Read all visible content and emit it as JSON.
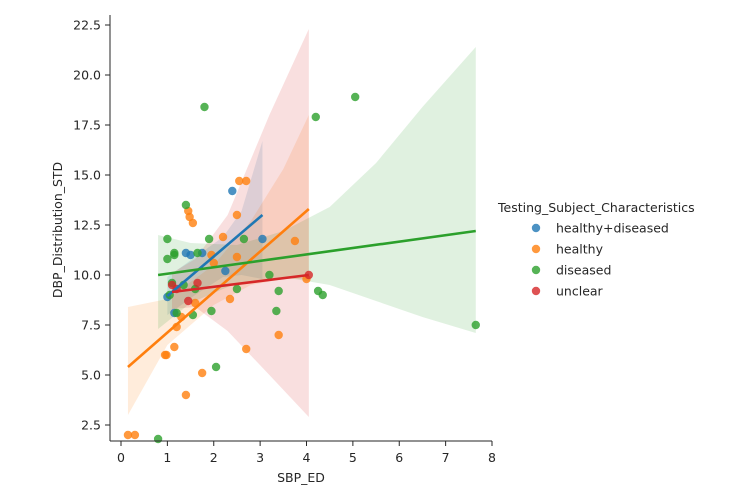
{
  "chart_data": {
    "type": "scatter",
    "xlabel": "SBP_ED",
    "ylabel": "DBP_Distribution_STD",
    "xlim": [
      -0.2,
      8.0
    ],
    "ylim": [
      1.0,
      23.0
    ],
    "xticks": [
      0,
      1,
      2,
      3,
      4,
      5,
      6,
      7,
      8
    ],
    "yticks": [
      2.5,
      5.0,
      7.5,
      10.0,
      12.5,
      15.0,
      17.5,
      20.0,
      22.5
    ],
    "grid": false,
    "legend": {
      "title": "Testing_Subject_Characteristics",
      "placement": "right"
    },
    "series": [
      {
        "name": "healthy+diseased",
        "color": "#1f77b4",
        "points": [
          [
            1.0,
            8.9
          ],
          [
            1.15,
            8.1
          ],
          [
            1.4,
            11.1
          ],
          [
            1.5,
            11.0
          ],
          [
            1.75,
            11.1
          ],
          [
            2.25,
            10.2
          ],
          [
            2.4,
            14.2
          ],
          [
            3.05,
            11.8
          ]
        ],
        "fit": [
          [
            1.0,
            8.95
          ],
          [
            3.05,
            13.0
          ]
        ],
        "band_upper": [
          [
            1.0,
            9.9
          ],
          [
            1.6,
            10.9
          ],
          [
            2.2,
            11.9
          ],
          [
            2.6,
            13.2
          ],
          [
            3.05,
            16.7
          ]
        ],
        "band_lower": [
          [
            1.0,
            8.0
          ],
          [
            1.6,
            9.0
          ],
          [
            2.2,
            9.9
          ],
          [
            2.6,
            10.0
          ],
          [
            3.05,
            9.8
          ]
        ]
      },
      {
        "name": "healthy",
        "color": "#ff7f0e",
        "points": [
          [
            0.15,
            2.0
          ],
          [
            0.3,
            2.0
          ],
          [
            0.95,
            6.0
          ],
          [
            0.98,
            6.0
          ],
          [
            1.15,
            6.4
          ],
          [
            1.2,
            7.4
          ],
          [
            1.3,
            7.9
          ],
          [
            1.4,
            4.0
          ],
          [
            1.45,
            13.2
          ],
          [
            1.48,
            12.9
          ],
          [
            1.55,
            12.6
          ],
          [
            1.6,
            8.6
          ],
          [
            1.75,
            5.1
          ],
          [
            1.95,
            11.0
          ],
          [
            2.0,
            10.6
          ],
          [
            2.2,
            11.9
          ],
          [
            2.35,
            8.8
          ],
          [
            2.5,
            10.9
          ],
          [
            2.5,
            13.0
          ],
          [
            2.55,
            14.7
          ],
          [
            2.7,
            14.7
          ],
          [
            2.7,
            6.3
          ],
          [
            3.4,
            7.0
          ],
          [
            3.75,
            11.7
          ],
          [
            4.0,
            9.8
          ]
        ],
        "fit": [
          [
            0.15,
            5.4
          ],
          [
            4.05,
            13.3
          ]
        ],
        "band_upper": [
          [
            0.15,
            8.4
          ],
          [
            1.0,
            8.8
          ],
          [
            2.0,
            10.5
          ],
          [
            2.8,
            12.7
          ],
          [
            3.5,
            15.3
          ],
          [
            4.05,
            18.0
          ]
        ],
        "band_lower": [
          [
            0.15,
            3.0
          ],
          [
            1.0,
            6.5
          ],
          [
            2.0,
            8.5
          ],
          [
            2.8,
            9.5
          ],
          [
            3.5,
            9.8
          ],
          [
            4.05,
            9.8
          ]
        ]
      },
      {
        "name": "diseased",
        "color": "#2ca02c",
        "points": [
          [
            0.8,
            1.8
          ],
          [
            1.0,
            10.8
          ],
          [
            1.0,
            11.8
          ],
          [
            1.05,
            9.0
          ],
          [
            1.1,
            9.6
          ],
          [
            1.15,
            11.0
          ],
          [
            1.15,
            11.1
          ],
          [
            1.2,
            8.1
          ],
          [
            1.35,
            9.5
          ],
          [
            1.4,
            13.5
          ],
          [
            1.55,
            8.0
          ],
          [
            1.6,
            9.3
          ],
          [
            1.65,
            11.1
          ],
          [
            1.8,
            18.4
          ],
          [
            1.9,
            11.8
          ],
          [
            1.95,
            8.2
          ],
          [
            2.05,
            5.4
          ],
          [
            2.5,
            9.3
          ],
          [
            2.65,
            11.8
          ],
          [
            3.2,
            10.0
          ],
          [
            3.35,
            8.2
          ],
          [
            3.4,
            9.2
          ],
          [
            4.2,
            17.9
          ],
          [
            4.25,
            9.2
          ],
          [
            4.35,
            9.0
          ],
          [
            5.05,
            18.9
          ],
          [
            7.65,
            7.5
          ]
        ],
        "fit": [
          [
            0.8,
            10.0
          ],
          [
            7.65,
            12.2
          ]
        ],
        "band_upper": [
          [
            0.8,
            12.0
          ],
          [
            1.5,
            11.6
          ],
          [
            2.5,
            11.5
          ],
          [
            3.5,
            12.2
          ],
          [
            4.5,
            13.4
          ],
          [
            5.5,
            15.6
          ],
          [
            6.5,
            18.4
          ],
          [
            7.65,
            21.4
          ]
        ],
        "band_lower": [
          [
            0.8,
            7.3
          ],
          [
            1.5,
            8.6
          ],
          [
            2.5,
            9.6
          ],
          [
            3.5,
            9.9
          ],
          [
            4.5,
            9.5
          ],
          [
            5.5,
            8.7
          ],
          [
            6.5,
            7.9
          ],
          [
            7.65,
            7.1
          ]
        ]
      },
      {
        "name": "unclear",
        "color": "#d62728",
        "points": [
          [
            1.1,
            9.5
          ],
          [
            1.2,
            9.3
          ],
          [
            1.45,
            8.7
          ],
          [
            1.65,
            9.6
          ],
          [
            4.05,
            10.0
          ]
        ],
        "fit": [
          [
            1.1,
            9.15
          ],
          [
            4.05,
            10.0
          ]
        ],
        "band_upper": [
          [
            1.1,
            10.1
          ],
          [
            1.6,
            10.8
          ],
          [
            2.3,
            13.0
          ],
          [
            3.2,
            18.0
          ],
          [
            4.05,
            22.3
          ]
        ],
        "band_lower": [
          [
            1.1,
            8.3
          ],
          [
            1.6,
            8.4
          ],
          [
            2.3,
            7.2
          ],
          [
            3.2,
            5.0
          ],
          [
            4.05,
            2.9
          ]
        ]
      }
    ]
  }
}
